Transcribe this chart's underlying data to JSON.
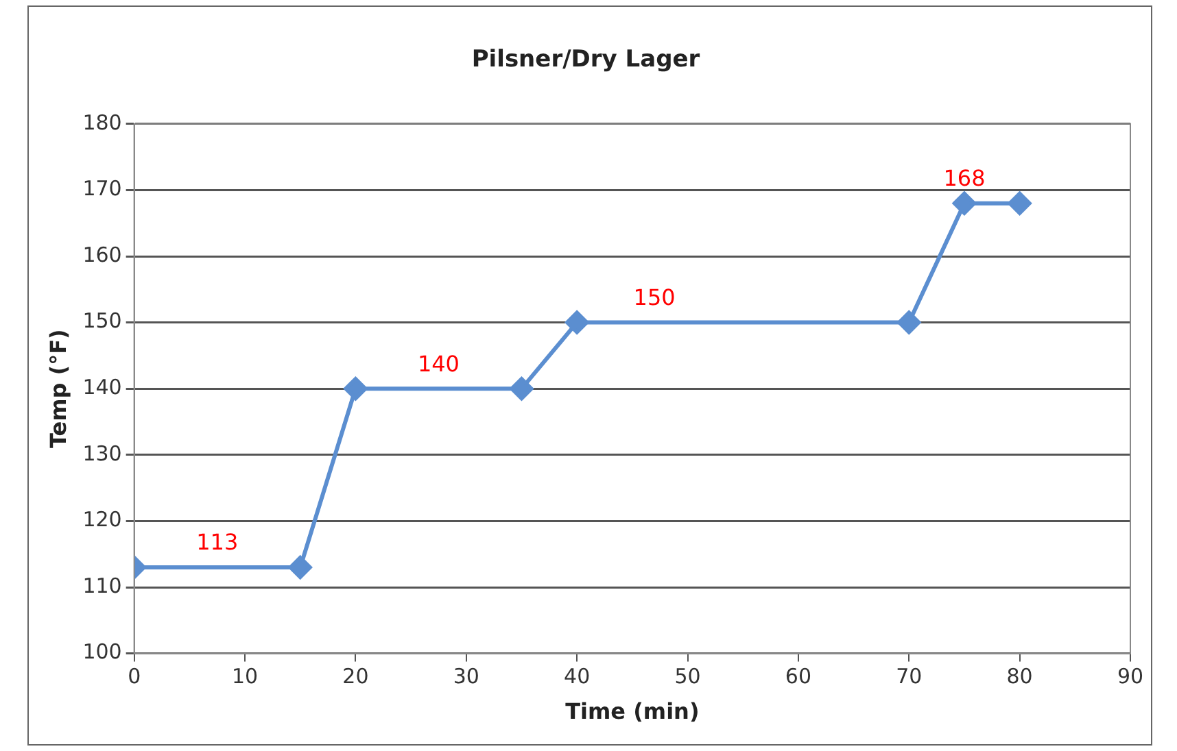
{
  "chart_data": {
    "type": "line",
    "title": "Pilsner/Dry Lager",
    "xlabel": "Time (min)",
    "ylabel": "Temp (°F)",
    "x": [
      0,
      15,
      20,
      35,
      40,
      70,
      75,
      80
    ],
    "series": [
      {
        "color": "#5b8ed0",
        "values": [
          113,
          113,
          140,
          140,
          150,
          150,
          168,
          168
        ]
      }
    ],
    "xlim": [
      0,
      90
    ],
    "xticks": [
      0,
      10,
      20,
      30,
      40,
      50,
      60,
      70,
      80,
      90
    ],
    "ylim": [
      100,
      180
    ],
    "yticks": [
      100,
      110,
      120,
      130,
      140,
      150,
      160,
      170,
      180
    ],
    "grid": "y",
    "legend": false,
    "marker": "diamond",
    "line_style": "solid",
    "annotations": [
      {
        "text": "113",
        "x": 7.5,
        "y": 113
      },
      {
        "text": "140",
        "x": 27.5,
        "y": 140
      },
      {
        "text": "150",
        "x": 47,
        "y": 150
      },
      {
        "text": "168",
        "x": 75,
        "y": 168
      }
    ]
  }
}
